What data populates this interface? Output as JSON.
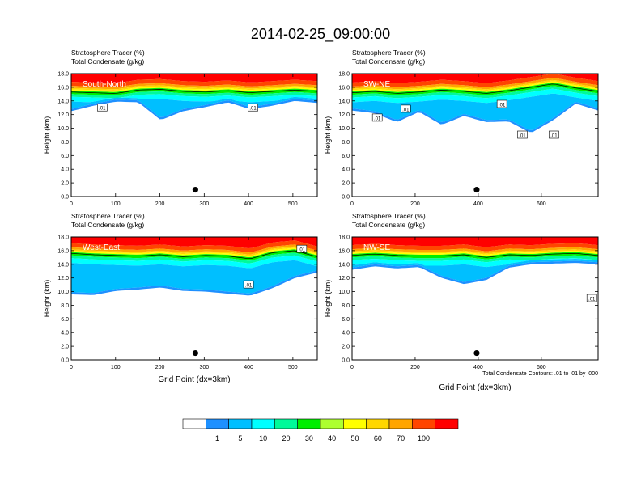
{
  "title": "2014-02-25_09:00:00",
  "header_line1": "Stratosphere Tracer   (%)",
  "header_line2": "Total Condensate   (g/kg)",
  "ylabel": "Height (km)",
  "xlabel": "Grid Point (dx=3km)",
  "contour_note": "Total Condensate Contours: .01 to .01 by .000",
  "colorbar": {
    "colors": [
      "#ffffff",
      "#1e90ff",
      "#00bfff",
      "#00ffff",
      "#00fa9a",
      "#00ee00",
      "#adff2f",
      "#ffff00",
      "#ffd700",
      "#ffa500",
      "#ff4500",
      "#ff0000"
    ],
    "labels": [
      "1",
      "5",
      "10",
      "20",
      "30",
      "40",
      "50",
      "60",
      "70",
      "100"
    ]
  },
  "chart_data": [
    {
      "type": "heatmap",
      "label": "South-North",
      "xlim": [
        0,
        555
      ],
      "ylim": [
        0,
        18
      ],
      "xticks": [
        0,
        100,
        200,
        300,
        400,
        500
      ],
      "yticks": [
        0.0,
        2.0,
        4.0,
        6.0,
        8.0,
        10.0,
        12.0,
        14.0,
        16.0,
        18.0
      ],
      "marker": {
        "x": 280,
        "y": 1.0
      },
      "contour_labels": [
        {
          "text": ".01",
          "x": 70,
          "y": 13
        },
        {
          "text": ".01",
          "x": 410,
          "y": 13
        }
      ],
      "tropopause_km": [
        15.5,
        15.4,
        15.3,
        15.8,
        15.9,
        15.6,
        15.5,
        15.7,
        15.4,
        15.6,
        15.8,
        15.6
      ],
      "cloud_base_km": [
        12.5,
        13.3,
        13.9,
        13.8,
        11.2,
        12.5,
        13.1,
        13.8,
        12.8,
        13.3,
        14.0,
        13.7
      ]
    },
    {
      "type": "heatmap",
      "label": "SW-NE",
      "xlim": [
        0,
        780
      ],
      "ylim": [
        0,
        18
      ],
      "xticks": [
        0,
        200,
        400,
        600
      ],
      "yticks": [
        0.0,
        2.0,
        4.0,
        6.0,
        8.0,
        10.0,
        12.0,
        14.0,
        16.0,
        18.0
      ],
      "marker": {
        "x": 395,
        "y": 1.0
      },
      "contour_labels": [
        {
          "text": ".01",
          "x": 80,
          "y": 11.5
        },
        {
          "text": ".01",
          "x": 170,
          "y": 12.8
        },
        {
          "text": ".01",
          "x": 475,
          "y": 13.5
        },
        {
          "text": ".01",
          "x": 540,
          "y": 9
        },
        {
          "text": ".01",
          "x": 640,
          "y": 9
        }
      ],
      "tropopause_km": [
        15.4,
        15.6,
        15.3,
        15.5,
        15.8,
        15.6,
        15.3,
        15.7,
        16.2,
        16.7,
        16.1,
        15.6
      ],
      "cloud_base_km": [
        12.6,
        12.2,
        10.9,
        12.4,
        10.5,
        11.8,
        10.9,
        11.0,
        9.3,
        11.2,
        13.6,
        12.6
      ]
    },
    {
      "type": "heatmap",
      "label": "West-East",
      "xlim": [
        0,
        555
      ],
      "ylim": [
        0,
        18
      ],
      "xticks": [
        0,
        100,
        200,
        300,
        400,
        500
      ],
      "yticks": [
        0.0,
        2.0,
        4.0,
        6.0,
        8.0,
        10.0,
        12.0,
        14.0,
        16.0,
        18.0
      ],
      "marker": {
        "x": 280,
        "y": 1.0
      },
      "contour_labels": [
        {
          "text": ".01",
          "x": 400,
          "y": 11
        },
        {
          "text": ".01",
          "x": 520,
          "y": 16.2
        }
      ],
      "tropopause_km": [
        15.8,
        15.6,
        15.5,
        15.4,
        15.6,
        15.3,
        15.5,
        15.4,
        15.0,
        15.9,
        16.2,
        15.3
      ],
      "cloud_base_km": [
        9.6,
        9.5,
        10.1,
        10.3,
        10.6,
        10.1,
        10.0,
        9.7,
        9.4,
        10.5,
        12.0,
        12.8
      ]
    },
    {
      "type": "heatmap",
      "label": "NW-SE",
      "xlim": [
        0,
        780
      ],
      "ylim": [
        0,
        18
      ],
      "xticks": [
        0,
        200,
        400,
        600
      ],
      "yticks": [
        0.0,
        2.0,
        4.0,
        6.0,
        8.0,
        10.0,
        12.0,
        14.0,
        16.0,
        18.0
      ],
      "marker": {
        "x": 395,
        "y": 1.0
      },
      "contour_labels": [
        {
          "text": ".01",
          "x": 760,
          "y": 9
        }
      ],
      "tropopause_km": [
        15.5,
        15.7,
        15.5,
        15.4,
        15.4,
        15.6,
        15.2,
        15.6,
        15.5,
        15.7,
        15.8,
        15.5
      ],
      "cloud_base_km": [
        13.2,
        13.7,
        13.4,
        13.6,
        12.0,
        11.1,
        11.7,
        13.5,
        14.0,
        14.1,
        14.2,
        14.0
      ]
    }
  ]
}
